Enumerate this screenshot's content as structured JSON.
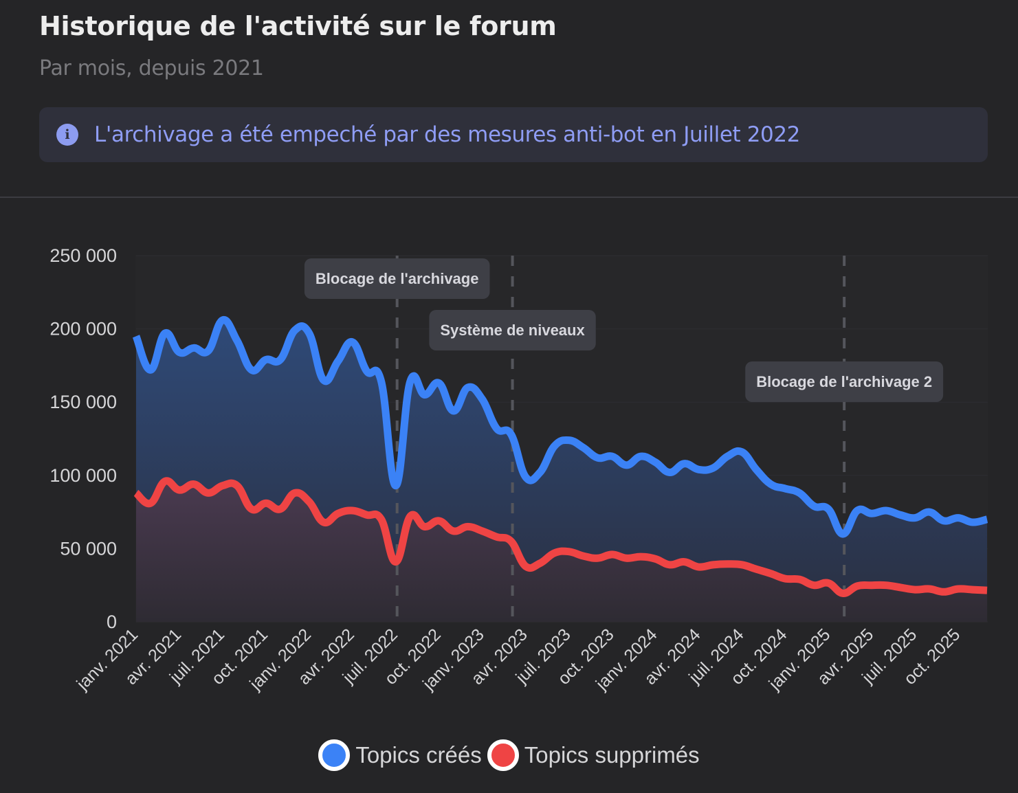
{
  "header": {
    "title": "Historique de l'activité sur le forum",
    "subtitle": "Par mois, depuis 2021"
  },
  "banner": {
    "icon": "info-icon",
    "text": "L'archivage a été empeché par des mesures anti-bot en Juillet 2022",
    "text_color": "#8f9df5",
    "icon_color": "#8d9cf0"
  },
  "chart_data": {
    "type": "area",
    "title": "",
    "xlabel": "",
    "ylabel": "",
    "ylim": [
      0,
      250000
    ],
    "y_ticks": [
      0,
      50000,
      100000,
      150000,
      200000,
      250000
    ],
    "y_tick_labels": [
      "0",
      "50 000",
      "100 000",
      "150 000",
      "200 000",
      "250 000"
    ],
    "grid": true,
    "legend_position": "bottom",
    "x": [
      "janv. 2021",
      "févr. 2021",
      "mars 2021",
      "avr. 2021",
      "mai 2021",
      "juin 2021",
      "juil. 2021",
      "août 2021",
      "sept. 2021",
      "oct. 2021",
      "nov. 2021",
      "déc. 2021",
      "janv. 2022",
      "févr. 2022",
      "mars 2022",
      "avr. 2022",
      "mai 2022",
      "juin 2022",
      "juil. 2022",
      "août 2022",
      "sept. 2022",
      "oct. 2022",
      "nov. 2022",
      "déc. 2022",
      "janv. 2023",
      "févr. 2023",
      "mars 2023",
      "avr. 2023",
      "mai 2023",
      "juin 2023",
      "juil. 2023",
      "août 2023",
      "sept. 2023",
      "oct. 2023",
      "nov. 2023",
      "déc. 2023",
      "janv. 2024",
      "févr. 2024",
      "mars 2024",
      "avr. 2024",
      "mai 2024",
      "juin 2024",
      "juil. 2024",
      "août 2024",
      "sept. 2024",
      "oct. 2024",
      "nov. 2024",
      "déc. 2024",
      "janv. 2025",
      "févr. 2025",
      "mars 2025",
      "avr. 2025",
      "mai 2025",
      "juin 2025",
      "juil. 2025",
      "août 2025",
      "sept. 2025",
      "oct. 2025",
      "nov. 2025",
      "déc. 2025"
    ],
    "x_tick_labels": [
      "janv. 2021",
      "avr. 2021",
      "juil. 2021",
      "oct. 2021",
      "janv. 2022",
      "avr. 2022",
      "juil. 2022",
      "oct. 2022",
      "janv. 2023",
      "avr. 2023",
      "juil. 2023",
      "oct. 2023",
      "janv. 2024",
      "avr. 2024",
      "juil. 2024",
      "oct. 2024",
      "janv. 2025",
      "avr. 2025",
      "juil. 2025",
      "oct. 2025"
    ],
    "series": [
      {
        "name": "Topics créés",
        "color": "#3b82f6",
        "values": [
          195000,
          172000,
          197000,
          184000,
          187000,
          185000,
          206000,
          192000,
          172000,
          179000,
          179000,
          199000,
          197000,
          165000,
          178000,
          191000,
          171000,
          164000,
          93000,
          164000,
          155000,
          163000,
          144000,
          160000,
          152000,
          132000,
          128000,
          99000,
          102000,
          120000,
          124000,
          119000,
          112000,
          113000,
          107000,
          113000,
          109000,
          102000,
          108000,
          104000,
          105000,
          113000,
          116000,
          104000,
          94000,
          91000,
          88000,
          79000,
          77000,
          60000,
          76000,
          74000,
          76000,
          73000,
          71000,
          75000,
          69000,
          71000,
          68000,
          70000
        ]
      },
      {
        "name": "Topics supprimés",
        "color": "#ef4444",
        "values": [
          88000,
          81000,
          96000,
          90000,
          94000,
          88000,
          93000,
          93000,
          77000,
          81000,
          77000,
          88000,
          82000,
          68000,
          74000,
          76000,
          73000,
          70000,
          41000,
          72000,
          65000,
          69000,
          62000,
          65000,
          62000,
          58000,
          55000,
          38000,
          40000,
          47000,
          48000,
          45000,
          43500,
          46000,
          43500,
          44500,
          43000,
          39000,
          41000,
          37500,
          39000,
          39500,
          39000,
          36000,
          33000,
          29500,
          29000,
          25000,
          26500,
          19500,
          24500,
          25000,
          25000,
          23500,
          22000,
          22500,
          20500,
          22500,
          22000,
          21500
        ]
      }
    ],
    "annotations": [
      {
        "label": "Blocage de l'archivage",
        "x": "juil. 2022"
      },
      {
        "label": "Système de niveaux",
        "x": "mars 2023"
      },
      {
        "label": "Blocage de l'archivage 2",
        "x": "févr. 2025"
      }
    ]
  }
}
